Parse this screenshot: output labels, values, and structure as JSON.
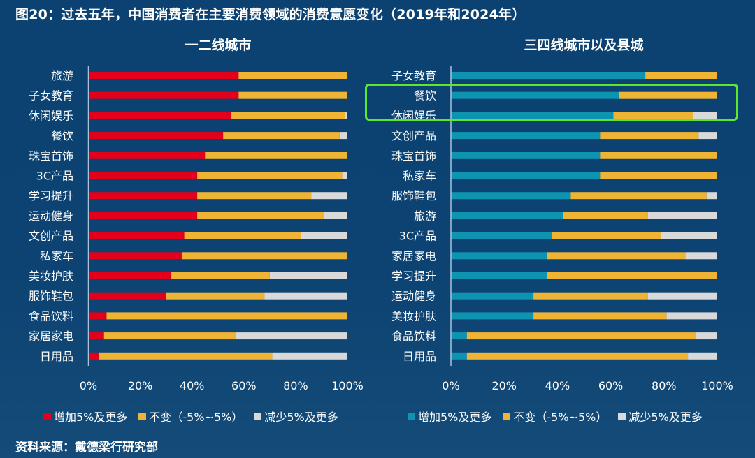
{
  "figure": {
    "title": "图20：过去五年，中国消费者在主要消费领域的消费意愿变化（2019年和2024年）",
    "source": "资料来源：戴德梁行研究部",
    "highlight": {
      "panel": "三四线城市以及县城",
      "categories": [
        "餐饮",
        "休闲娱乐"
      ],
      "color": "#5ee82a"
    }
  },
  "colors": {
    "background": "#0c4372",
    "increase_left": "#e3001b",
    "increase_right": "#0e93b0",
    "unchanged": "#f0b434",
    "decrease": "#d9d9d9",
    "axis": "#a9c3dc"
  },
  "chart_data": [
    {
      "type": "bar",
      "orientation": "horizontal",
      "stacked": true,
      "title": "一二线城市",
      "categories": [
        "旅游",
        "子女教育",
        "休闲娱乐",
        "餐饮",
        "珠宝首饰",
        "3C产品",
        "学习提升",
        "运动健身",
        "文创产品",
        "私家车",
        "美妆护肤",
        "服饰鞋包",
        "食品饮料",
        "家居家电",
        "日用品"
      ],
      "series": [
        {
          "name": "增加5%及更多",
          "color": "#e3001b",
          "values": [
            58,
            58,
            55,
            52,
            45,
            42,
            42,
            42,
            37,
            36,
            32,
            30,
            7,
            6,
            4
          ]
        },
        {
          "name": "不变（-5%~5%）",
          "color": "#f0b434",
          "values": [
            42,
            42,
            44,
            45,
            55,
            56,
            44,
            49,
            45,
            64,
            38,
            38,
            93,
            51,
            67
          ]
        },
        {
          "name": "减少5%及更多",
          "color": "#d9d9d9",
          "values": [
            0,
            0,
            1,
            3,
            0,
            2,
            14,
            9,
            18,
            0,
            30,
            32,
            0,
            43,
            29
          ]
        }
      ],
      "xlim": [
        0,
        100
      ],
      "xticks": [
        "0%",
        "20%",
        "40%",
        "60%",
        "80%",
        "100%"
      ],
      "legend": "bottom",
      "grid": false
    },
    {
      "type": "bar",
      "orientation": "horizontal",
      "stacked": true,
      "title": "三四线城市以及县城",
      "categories": [
        "子女教育",
        "餐饮",
        "休闲娱乐",
        "文创产品",
        "珠宝首饰",
        "私家车",
        "服饰鞋包",
        "旅游",
        "3C产品",
        "家居家电",
        "学习提升",
        "运动健身",
        "美妆护肤",
        "食品饮料",
        "日用品"
      ],
      "series": [
        {
          "name": "增加5%及更多",
          "color": "#0e93b0",
          "values": [
            73,
            63,
            61,
            56,
            56,
            56,
            45,
            42,
            38,
            36,
            36,
            31,
            31,
            6,
            6
          ]
        },
        {
          "name": "不变（-5%~5%）",
          "color": "#f0b434",
          "values": [
            27,
            37,
            30,
            37,
            44,
            44,
            51,
            32,
            41,
            52,
            64,
            43,
            50,
            86,
            83
          ]
        },
        {
          "name": "减少5%及更多",
          "color": "#d9d9d9",
          "values": [
            0,
            0,
            9,
            7,
            0,
            0,
            4,
            26,
            21,
            12,
            0,
            26,
            19,
            8,
            11
          ]
        }
      ],
      "xlim": [
        0,
        100
      ],
      "xticks": [
        "0%",
        "20%",
        "40%",
        "60%",
        "80%",
        "100%"
      ],
      "legend": "bottom",
      "grid": false
    }
  ]
}
